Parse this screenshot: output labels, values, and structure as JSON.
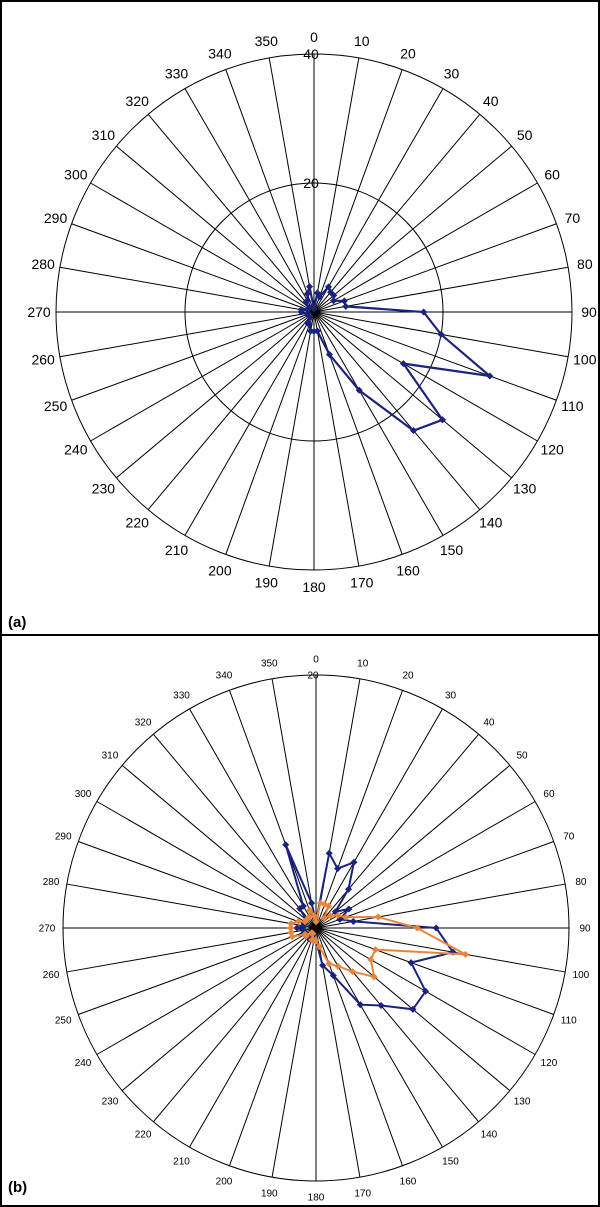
{
  "colors": {
    "series_blue": "#1a237e",
    "series_orange": "#e8853a",
    "grid": "#000000"
  },
  "chart_data": [
    {
      "panel_label": "(a)",
      "type": "radar",
      "angle_labels": [
        "0",
        "10",
        "20",
        "30",
        "40",
        "50",
        "60",
        "70",
        "80",
        "90",
        "100",
        "110",
        "120",
        "130",
        "140",
        "150",
        "160",
        "170",
        "180",
        "190",
        "200",
        "210",
        "220",
        "230",
        "240",
        "250",
        "260",
        "270",
        "280",
        "290",
        "300",
        "310",
        "320",
        "330",
        "340",
        "350"
      ],
      "radial_tick_labels": [
        "0",
        "20",
        "40"
      ],
      "rmax": 40,
      "series": [
        {
          "color": "#1a237e",
          "values": [
            0.5,
            3,
            2.5,
            4.5,
            4,
            4,
            3.5,
            5,
            5,
            17,
            20,
            29,
            16,
            26,
            24,
            14,
            7,
            3,
            3,
            3,
            2,
            2,
            1,
            1,
            1,
            1,
            1,
            2,
            2,
            1,
            1,
            1,
            2,
            2,
            3,
            4
          ]
        }
      ]
    },
    {
      "panel_label": "(b)",
      "type": "radar",
      "angle_labels": [
        "0",
        "10",
        "20",
        "30",
        "40",
        "50",
        "60",
        "70",
        "80",
        "90",
        "100",
        "110",
        "120",
        "130",
        "140",
        "150",
        "160",
        "170",
        "180",
        "190",
        "200",
        "210",
        "220",
        "230",
        "240",
        "250",
        "260",
        "270",
        "280",
        "290",
        "300",
        "310",
        "320",
        "330",
        "340",
        "350"
      ],
      "radial_tick_labels": [
        "20"
      ],
      "rmax": 20,
      "series": [
        {
          "color": "#1a237e",
          "values": [
            0.5,
            6,
            5,
            6,
            4,
            2,
            3,
            2,
            3,
            9.5,
            11,
            8,
            10,
            10,
            8,
            7,
            4,
            3,
            1,
            1,
            1,
            1,
            1,
            1,
            1,
            1,
            1,
            1.5,
            1,
            1,
            1,
            1,
            2,
            2,
            7,
            2
          ]
        },
        {
          "color": "#e8853a",
          "values": [
            0.5,
            2,
            2,
            2,
            1,
            1.5,
            2,
            2.5,
            5,
            8,
            12,
            5,
            5,
            6,
            4.5,
            3.5,
            3,
            1.5,
            1,
            1,
            1,
            0.5,
            0.5,
            1,
            1,
            2,
            2,
            2,
            2,
            1.5,
            1,
            1,
            1,
            1,
            1.5,
            1
          ]
        }
      ]
    }
  ]
}
